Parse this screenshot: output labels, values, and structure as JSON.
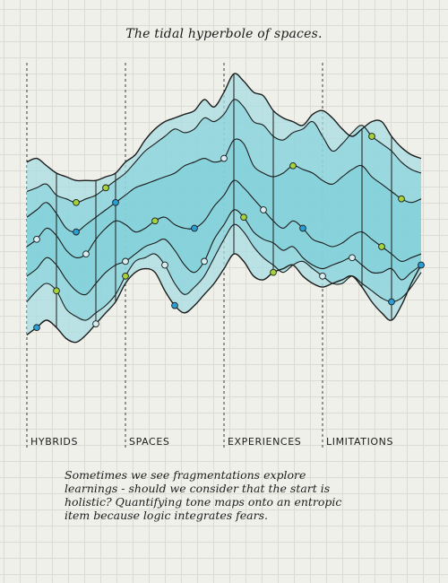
{
  "chart_data": {
    "type": "area",
    "title": "The tidal hyperbole of spaces.",
    "categories": [
      "HYBRIDS",
      "SPACES",
      "EXPERIENCES",
      "LIMITATIONS"
    ],
    "x": [
      0,
      1,
      2,
      3,
      4,
      5,
      6,
      7,
      8,
      9,
      10,
      11,
      12,
      13,
      14,
      15,
      16,
      17,
      18,
      19,
      20,
      21,
      22,
      23,
      24,
      25,
      26,
      27,
      28,
      29,
      30,
      31,
      32,
      33,
      34,
      35,
      36,
      37,
      38,
      39,
      40
    ],
    "ylim": [
      0,
      100
    ],
    "grid": true,
    "colors": {
      "band_outer": "#a8dde3",
      "band_inner": "#7ccfd9",
      "outline": "#1c1c1c",
      "dot_blue": "#2a9fd6",
      "dot_green": "#a6d33b",
      "dot_light": "#d9eef2"
    },
    "series": [
      {
        "values": [
          73,
          74,
          72,
          70,
          69,
          68,
          68,
          68,
          69,
          70,
          73,
          75,
          79,
          82,
          84,
          85,
          86,
          87,
          90,
          88,
          92,
          97,
          95,
          92,
          91,
          87,
          85,
          84,
          83,
          86,
          87,
          85,
          82,
          80,
          82,
          84,
          84,
          80,
          77,
          75,
          74
        ]
      },
      {
        "values": [
          65,
          66,
          67,
          64,
          63,
          62,
          63,
          64,
          66,
          68,
          70,
          73,
          76,
          78,
          80,
          82,
          81,
          82,
          85,
          84,
          86,
          90,
          88,
          84,
          83,
          80,
          79,
          81,
          82,
          84,
          80,
          76,
          78,
          81,
          83,
          80,
          78,
          76,
          73,
          71,
          70
        ]
      },
      {
        "values": [
          58,
          60,
          62,
          59,
          55,
          54,
          56,
          58,
          60,
          62,
          64,
          66,
          67,
          68,
          69,
          70,
          72,
          73,
          74,
          73,
          74,
          79,
          78,
          72,
          70,
          69,
          70,
          72,
          71,
          70,
          68,
          67,
          69,
          71,
          72,
          69,
          67,
          65,
          63,
          62,
          63
        ]
      },
      {
        "values": [
          50,
          52,
          55,
          53,
          49,
          47,
          48,
          52,
          55,
          57,
          56,
          54,
          55,
          57,
          58,
          56,
          55,
          55,
          57,
          61,
          64,
          68,
          66,
          63,
          60,
          57,
          55,
          57,
          55,
          52,
          51,
          50,
          51,
          53,
          54,
          52,
          50,
          48,
          46,
          47,
          48
        ]
      },
      {
        "values": [
          42,
          44,
          47,
          45,
          41,
          38,
          37,
          40,
          43,
          45,
          46,
          48,
          50,
          51,
          52,
          49,
          45,
          43,
          46,
          52,
          56,
          60,
          58,
          54,
          52,
          51,
          49,
          50,
          47,
          45,
          44,
          45,
          46,
          47,
          45,
          43,
          43,
          44,
          41,
          43,
          45
        ]
      },
      {
        "values": [
          35,
          38,
          40,
          38,
          33,
          31,
          30,
          32,
          34,
          37,
          42,
          46,
          47,
          48,
          45,
          40,
          37,
          39,
          42,
          47,
          52,
          56,
          54,
          50,
          47,
          45,
          43,
          45,
          46,
          44,
          42,
          40,
          40,
          42,
          40,
          38,
          36,
          35,
          36,
          39,
          43
        ]
      },
      {
        "values": [
          26,
          28,
          30,
          28,
          25,
          24,
          26,
          29,
          32,
          35,
          40,
          43,
          44,
          43,
          38,
          34,
          32,
          34,
          37,
          40,
          44,
          48,
          46,
          42,
          41,
          43,
          44,
          45,
          42,
          40,
          39,
          40,
          41,
          42,
          39,
          35,
          32,
          30,
          34,
          40,
          45
        ]
      }
    ],
    "markers": [
      {
        "series": 6,
        "x": 1,
        "color": "blue"
      },
      {
        "series": 3,
        "x": 1,
        "color": "light"
      },
      {
        "series": 5,
        "x": 3,
        "color": "green"
      },
      {
        "series": 1,
        "x": 5,
        "color": "green"
      },
      {
        "series": 2,
        "x": 5,
        "color": "blue"
      },
      {
        "series": 3,
        "x": 6,
        "color": "light"
      },
      {
        "series": 6,
        "x": 7,
        "color": "light"
      },
      {
        "series": 1,
        "x": 8,
        "color": "green"
      },
      {
        "series": 2,
        "x": 9,
        "color": "blue"
      },
      {
        "series": 4,
        "x": 10,
        "color": "light"
      },
      {
        "series": 5,
        "x": 10,
        "color": "green"
      },
      {
        "series": 3,
        "x": 13,
        "color": "green"
      },
      {
        "series": 5,
        "x": 14,
        "color": "light"
      },
      {
        "series": 6,
        "x": 15,
        "color": "blue"
      },
      {
        "series": 3,
        "x": 17,
        "color": "blue"
      },
      {
        "series": 4,
        "x": 18,
        "color": "light"
      },
      {
        "series": 2,
        "x": 20,
        "color": "light"
      },
      {
        "series": 4,
        "x": 22,
        "color": "green"
      },
      {
        "series": 3,
        "x": 24,
        "color": "light"
      },
      {
        "series": 6,
        "x": 25,
        "color": "green"
      },
      {
        "series": 2,
        "x": 27,
        "color": "green"
      },
      {
        "series": 3,
        "x": 28,
        "color": "blue"
      },
      {
        "series": 5,
        "x": 30,
        "color": "light"
      },
      {
        "series": 4,
        "x": 33,
        "color": "light"
      },
      {
        "series": 1,
        "x": 35,
        "color": "green"
      },
      {
        "series": 3,
        "x": 36,
        "color": "green"
      },
      {
        "series": 5,
        "x": 37,
        "color": "blue"
      },
      {
        "series": 2,
        "x": 38,
        "color": "green"
      },
      {
        "series": 4,
        "x": 40,
        "color": "blue"
      }
    ]
  },
  "caption": "Sometimes we see fragmentations explore learnings - should we consider that the start is holistic? Quantifying tone maps onto an entropic item because logic integrates fears."
}
